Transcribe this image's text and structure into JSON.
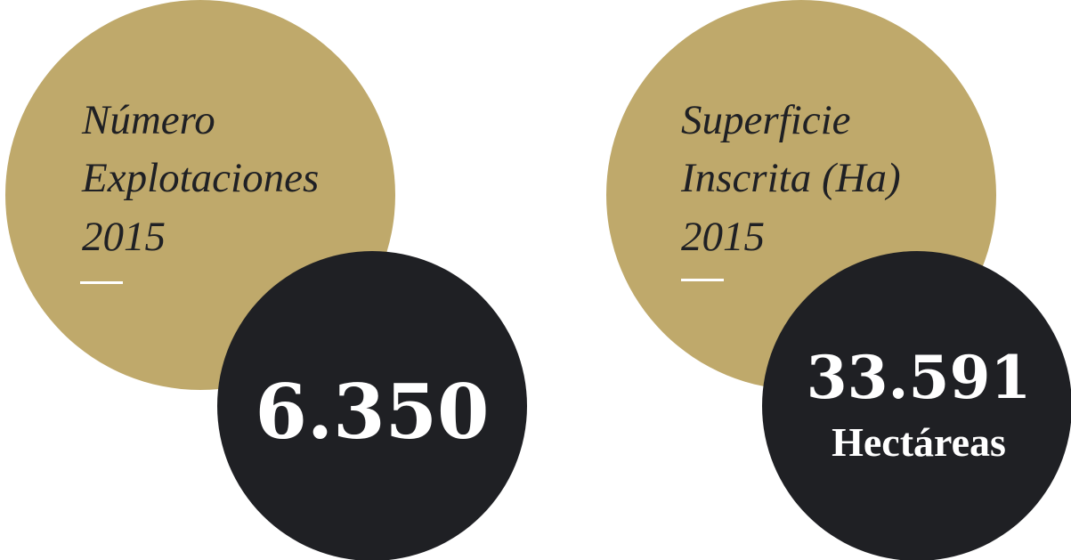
{
  "items": [
    {
      "label": [
        "Número",
        "Explotaciones",
        "2015"
      ],
      "value": "6.350"
    },
    {
      "label": [
        "Superficie",
        "Inscrita (Ha)",
        "2015"
      ],
      "value": "33.591",
      "unit": "Hectáreas"
    }
  ]
}
